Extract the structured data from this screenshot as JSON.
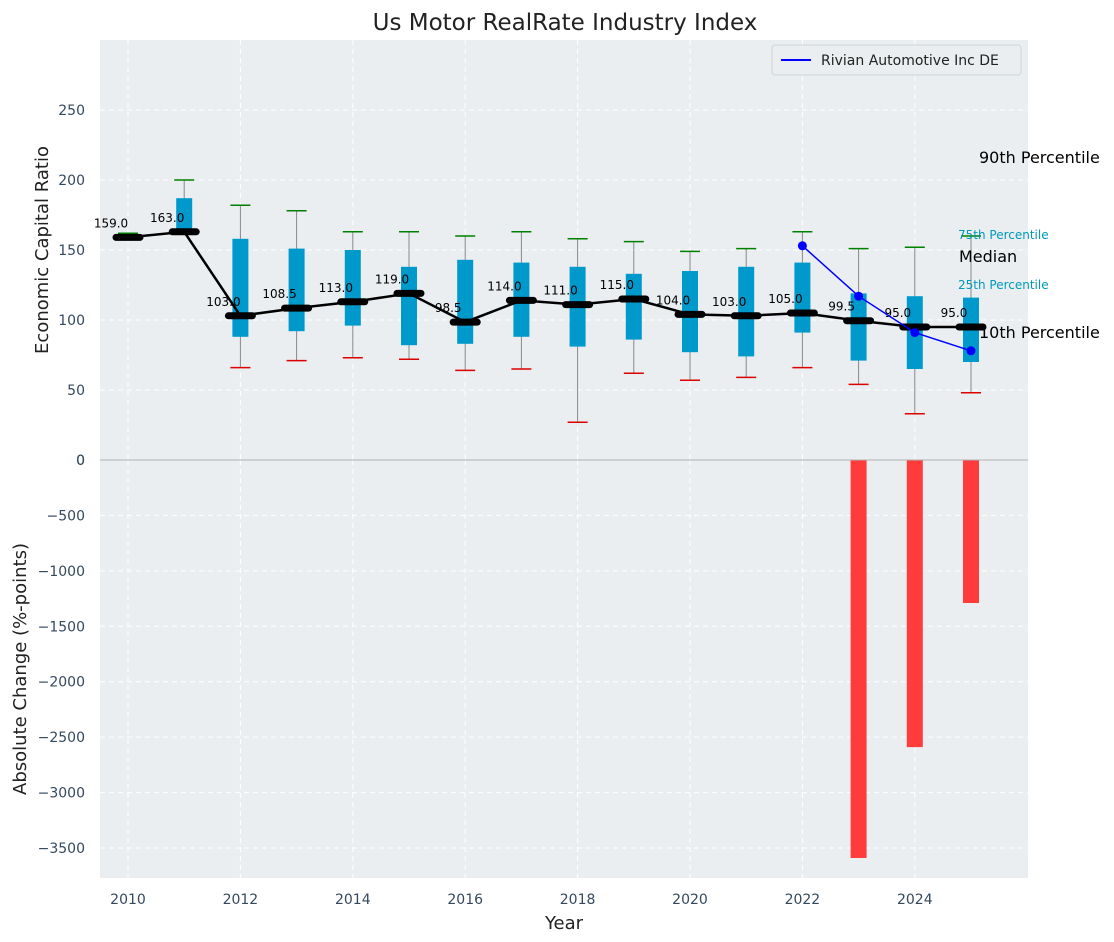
{
  "chart_data": [
    {
      "type": "box",
      "title": "Us Motor RealRate Industry Index",
      "ylabel": "Economic Capital Ratio",
      "ylim": [
        0,
        250
      ],
      "yticks": [
        0,
        50,
        100,
        150,
        200,
        250
      ],
      "grid": true,
      "legend_position": "top-right",
      "x": [
        2010,
        2011,
        2012,
        2013,
        2014,
        2015,
        2016,
        2017,
        2018,
        2019,
        2020,
        2021,
        2022,
        2023,
        2024,
        2025
      ],
      "p10": [
        160,
        162,
        66,
        71,
        73,
        72,
        64,
        65,
        27,
        62,
        57,
        59,
        66,
        54,
        33,
        48
      ],
      "p25": [
        159,
        161,
        88,
        92,
        96,
        82,
        83,
        88,
        81,
        86,
        77,
        74,
        91,
        71,
        65,
        70
      ],
      "median": [
        159.0,
        163.0,
        103.0,
        108.5,
        113.0,
        119.0,
        98.5,
        114.0,
        111.0,
        115.0,
        104.0,
        103.0,
        105.0,
        99.5,
        95.0,
        95.0
      ],
      "median_labels": [
        "159.0",
        "163.0",
        "103.0",
        "108.5",
        "113.0",
        "119.0",
        "98.5",
        "114.0",
        "111.0",
        "115.0",
        "104.0",
        "103.0",
        "105.0",
        "99.5",
        "95.0",
        "95.0"
      ],
      "p75": [
        160,
        187,
        158,
        151,
        150,
        138,
        143,
        141,
        138,
        133,
        135,
        138,
        141,
        119,
        117,
        116
      ],
      "p90": [
        162,
        200,
        182,
        178,
        163,
        163,
        160,
        163,
        158,
        156,
        149,
        151,
        163,
        151,
        152,
        160
      ],
      "company": {
        "name": "Rivian Automotive Inc DE",
        "x": [
          2022,
          2023,
          2024,
          2025
        ],
        "y": [
          153,
          117,
          91,
          78
        ]
      },
      "percentile_labels": {
        "p90": "90th Percentile",
        "p75": "75th Percentile",
        "median": "Median",
        "p25": "25th Percentile",
        "p10": "10th Percentile"
      }
    },
    {
      "type": "bar",
      "xlabel": "Year",
      "ylabel": "Absolute Change (%-points)",
      "ylim": [
        -3750,
        0
      ],
      "yticks": [
        0,
        -500,
        -1000,
        -1500,
        -2000,
        -2500,
        -3000,
        -3500
      ],
      "xticks": [
        2010,
        2012,
        2014,
        2016,
        2018,
        2020,
        2022,
        2024
      ],
      "grid": true,
      "x": [
        2023,
        2024,
        2025
      ],
      "values": [
        -3590,
        -2590,
        -1290
      ]
    }
  ],
  "colors": {
    "plot_background": "#eaeef0",
    "box_fill": "#0099cc",
    "median_line": "#000000",
    "p90_cap": "#008000",
    "p10_cap": "#dd0000",
    "whisker": "#888888",
    "company_line": "#0000ff",
    "bar": "#ff3b3b",
    "tick_text": "#34495e",
    "percentile_small_text": "#0099bb"
  }
}
